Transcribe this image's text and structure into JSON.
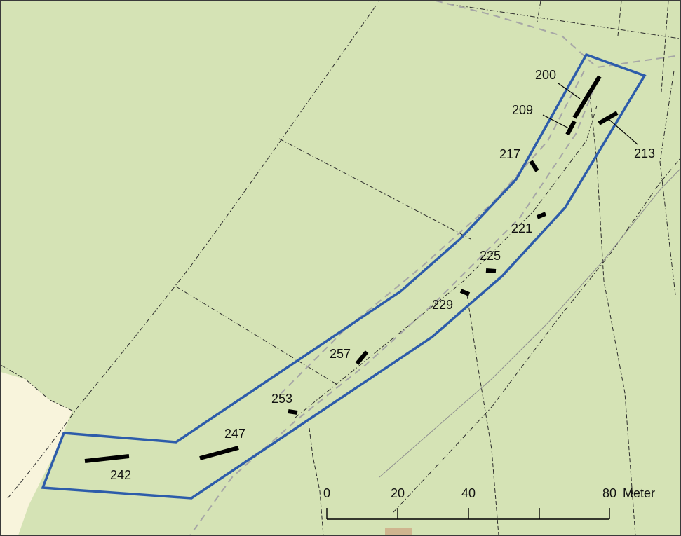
{
  "map": {
    "colors": {
      "background": "#d5e3b5",
      "cream_area": "#f8f4dc",
      "study_area_outline": "#2d5caa",
      "features": "#000000",
      "tracks": "#a6a6a6",
      "building": "#cfb58f"
    },
    "feature_labels": [
      {
        "id": "200",
        "text": "200"
      },
      {
        "id": "209",
        "text": "209"
      },
      {
        "id": "213",
        "text": "213"
      },
      {
        "id": "217",
        "text": "217"
      },
      {
        "id": "221",
        "text": "221"
      },
      {
        "id": "225",
        "text": "225"
      },
      {
        "id": "229",
        "text": "229"
      },
      {
        "id": "257",
        "text": "257"
      },
      {
        "id": "253",
        "text": "253"
      },
      {
        "id": "247",
        "text": "247"
      },
      {
        "id": "242",
        "text": "242"
      }
    ],
    "scale_bar": {
      "ticks": [
        "0",
        "20",
        "40",
        "80"
      ],
      "unit": "Meter"
    }
  }
}
